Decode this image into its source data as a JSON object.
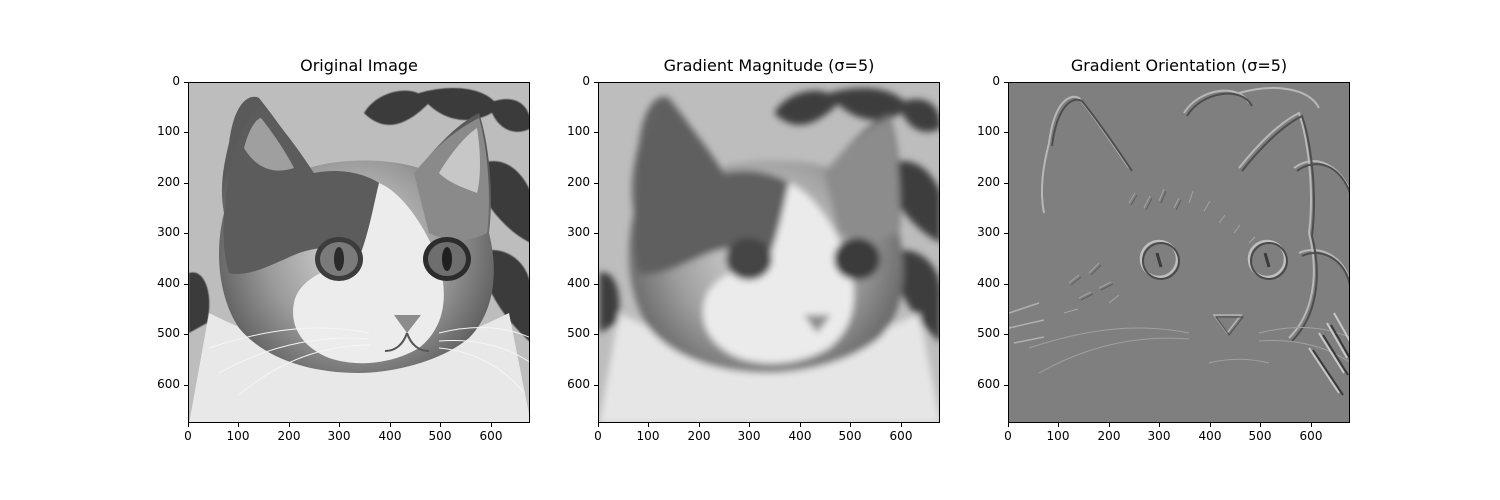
{
  "chart_data": [
    {
      "type": "image",
      "title": "Original Image",
      "render": "grayscale photo",
      "xlim": [
        0,
        680
      ],
      "ylim": [
        680,
        0
      ],
      "xticks": [
        "0",
        "100",
        "200",
        "300",
        "400",
        "500",
        "600"
      ],
      "yticks": [
        "0",
        "100",
        "200",
        "300",
        "400",
        "500",
        "600"
      ]
    },
    {
      "type": "image",
      "title": "Gradient Magnitude (σ=5)",
      "render": "blurred grayscale",
      "xlim": [
        0,
        680
      ],
      "ylim": [
        680,
        0
      ],
      "xticks": [
        "0",
        "100",
        "200",
        "300",
        "400",
        "500",
        "600"
      ],
      "yticks": [
        "0",
        "100",
        "200",
        "300",
        "400",
        "500",
        "600"
      ]
    },
    {
      "type": "image",
      "title": "Gradient Orientation (σ=5)",
      "render": "embossed edge map",
      "xlim": [
        0,
        680
      ],
      "ylim": [
        680,
        0
      ],
      "xticks": [
        "0",
        "100",
        "200",
        "300",
        "400",
        "500",
        "600"
      ],
      "yticks": [
        "0",
        "100",
        "200",
        "300",
        "400",
        "500",
        "600"
      ]
    }
  ]
}
